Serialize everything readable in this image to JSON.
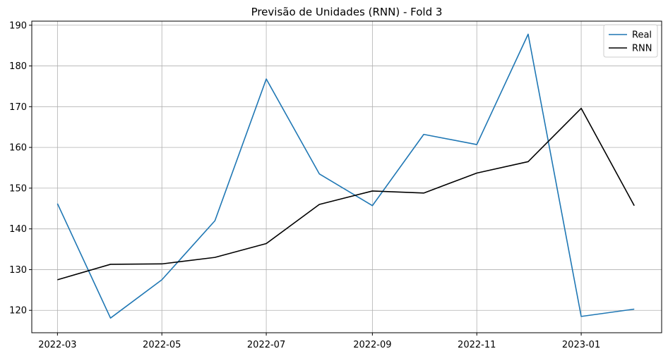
{
  "chart_data": {
    "type": "line",
    "title": "Previsão de Unidades (RNN) - Fold 3",
    "xlabel": "",
    "ylabel": "",
    "x": [
      "2022-03-01",
      "2022-04-01",
      "2022-05-01",
      "2022-06-01",
      "2022-07-01",
      "2022-08-01",
      "2022-09-01",
      "2022-10-01",
      "2022-11-01",
      "2022-12-01",
      "2023-01-01",
      "2023-02-01"
    ],
    "x_ticks": [
      "2022-03",
      "2022-05",
      "2022-07",
      "2022-09",
      "2022-11",
      "2023-01"
    ],
    "y_ticks": [
      120,
      130,
      140,
      150,
      160,
      170,
      180,
      190
    ],
    "xlim": [
      "2022-02-14",
      "2023-02-17"
    ],
    "ylim": [
      114.5,
      191
    ],
    "grid": true,
    "legend_position": "top-right",
    "series": [
      {
        "name": "Real",
        "color": "#1f77b4",
        "values": [
          146.2,
          118.1,
          127.5,
          142.0,
          176.8,
          153.5,
          145.7,
          163.2,
          160.7,
          187.8,
          118.5,
          120.3
        ]
      },
      {
        "name": "RNN",
        "color": "#000000",
        "values": [
          127.5,
          131.3,
          131.4,
          133.0,
          136.4,
          146.0,
          149.3,
          148.8,
          153.7,
          156.5,
          169.6,
          145.7
        ]
      }
    ]
  }
}
